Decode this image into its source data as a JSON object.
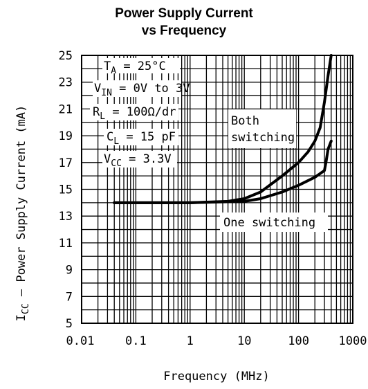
{
  "chart_data": {
    "type": "line",
    "title_line1": "Power Supply Current",
    "title_line2": "vs Frequency",
    "xlabel": "Frequency (MHz)",
    "ylabel_main": "I",
    "ylabel_sub": "CC",
    "ylabel_rest": " – Power Supply Current (mA)",
    "x_scale": "log",
    "xlim": [
      0.01,
      1000
    ],
    "ylim": [
      5,
      25
    ],
    "grid": true,
    "x_ticks": [
      "0.01",
      "0.1",
      "1",
      "10",
      "100",
      "1000"
    ],
    "x_tick_values": [
      0.01,
      0.1,
      1,
      10,
      100,
      1000
    ],
    "y_ticks": [
      "5",
      "7",
      "9",
      "11",
      "13",
      "15",
      "17",
      "19",
      "21",
      "23",
      "25"
    ],
    "y_tick_values": [
      5,
      7,
      9,
      11,
      13,
      15,
      17,
      19,
      21,
      23,
      25
    ],
    "conditions": {
      "ta": {
        "main": "T",
        "sub": "A",
        "rest": " = 25°C"
      },
      "vin": {
        "main": "V",
        "sub": "IN",
        "rest": " = 0V to 3V"
      },
      "rl": {
        "main": "R",
        "sub": "L",
        "rest": " = 100Ω/dr"
      },
      "cl": {
        "main": "C",
        "sub": "L",
        "rest": " = 15 pF"
      },
      "vcc": {
        "main": "V",
        "sub": "CC",
        "rest": " = 3.3V"
      }
    },
    "series": [
      {
        "name": "Both switching",
        "label_line1": "Both",
        "label_line2": "switching",
        "points": [
          [
            0.04,
            14.0
          ],
          [
            0.1,
            14.0
          ],
          [
            1,
            14.0
          ],
          [
            5,
            14.1
          ],
          [
            10,
            14.3
          ],
          [
            20,
            14.8
          ],
          [
            50,
            16.0
          ],
          [
            100,
            17.0
          ],
          [
            150,
            17.8
          ],
          [
            200,
            18.6
          ],
          [
            250,
            19.6
          ],
          [
            300,
            21.5
          ],
          [
            350,
            23.5
          ],
          [
            400,
            25.0
          ]
        ]
      },
      {
        "name": "One switching",
        "label_line1": "One switching",
        "points": [
          [
            0.04,
            14.0
          ],
          [
            0.1,
            14.0
          ],
          [
            1,
            14.0
          ],
          [
            10,
            14.1
          ],
          [
            20,
            14.3
          ],
          [
            50,
            14.8
          ],
          [
            100,
            15.3
          ],
          [
            200,
            15.9
          ],
          [
            300,
            16.4
          ],
          [
            320,
            17.0
          ],
          [
            350,
            18.0
          ],
          [
            400,
            18.6
          ]
        ]
      }
    ]
  }
}
